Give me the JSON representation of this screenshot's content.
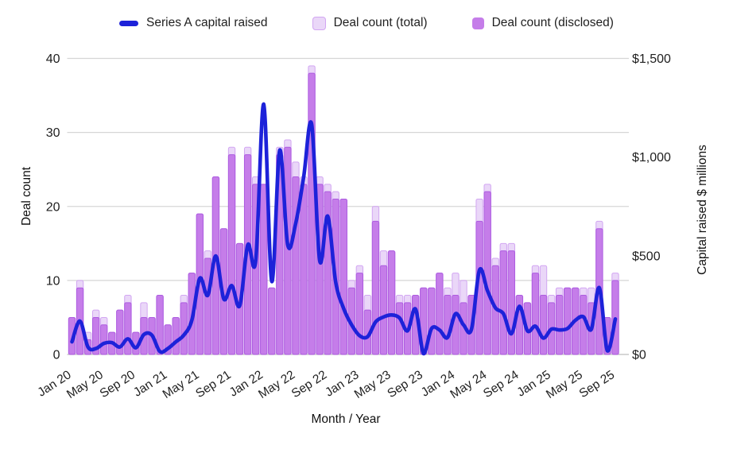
{
  "legend": {
    "series_a_label": "Series A capital raised",
    "total_label": "Deal count (total)",
    "disclosed_label": "Deal count (disclosed)"
  },
  "colors": {
    "line": "#1d22d9",
    "bar_total_fill": "#ead7f8",
    "bar_total_stroke": "#d2a6f2",
    "bar_disclosed_fill": "#c57de9",
    "bar_disclosed_stroke": "#ad5ce0",
    "grid": "#d6d6d6",
    "baseline": "#bdbdbd",
    "text": "#1f1f1f"
  },
  "axes": {
    "left": {
      "title": "Deal count",
      "ticks": [
        0,
        10,
        20,
        30,
        40
      ],
      "max": 40
    },
    "right": {
      "title": "Capital raised $ millions",
      "ticks": [
        "$0",
        "$500",
        "$1,000",
        "$1,500"
      ],
      "tick_values": [
        0,
        500,
        1000,
        1500
      ],
      "max": 1500
    },
    "x": {
      "title": "Month / Year",
      "label_every_n_months": 4
    }
  },
  "chart_data": {
    "type": "bar",
    "subtype": "combo-bar-line-dual-axis",
    "title": "",
    "xlabel": "Month / Year",
    "ylabel_left": "Deal count",
    "ylabel_right": "Capital raised $ millions",
    "left_ylim": [
      0,
      40
    ],
    "right_ylim": [
      0,
      1500
    ],
    "grid": true,
    "legend_position": "top",
    "categories": [
      "Jan 20",
      "Feb 20",
      "Mar 20",
      "Apr 20",
      "May 20",
      "Jun 20",
      "Jul 20",
      "Aug 20",
      "Sep 20",
      "Oct 20",
      "Nov 20",
      "Dec 20",
      "Jan 21",
      "Feb 21",
      "Mar 21",
      "Apr 21",
      "May 21",
      "Jun 21",
      "Jul 21",
      "Aug 21",
      "Sep 21",
      "Oct 21",
      "Nov 21",
      "Dec 21",
      "Jan 22",
      "Feb 22",
      "Mar 22",
      "Apr 22",
      "May 22",
      "Jun 22",
      "Jul 22",
      "Aug 22",
      "Sep 22",
      "Oct 22",
      "Nov 22",
      "Dec 22",
      "Jan 23",
      "Feb 23",
      "Mar 23",
      "Apr 23",
      "May 23",
      "Jun 23",
      "Jul 23",
      "Aug 23",
      "Sep 23",
      "Oct 23",
      "Nov 23",
      "Dec 23",
      "Jan 24",
      "Feb 24",
      "Mar 24",
      "Apr 24",
      "May 24",
      "Jun 24",
      "Jul 24",
      "Aug 24",
      "Sep 24",
      "Oct 24",
      "Nov 24",
      "Dec 24",
      "Jan 25",
      "Feb 25",
      "Mar 25",
      "Apr 25",
      "May 25",
      "Jun 25",
      "Jul 25",
      "Aug 25",
      "Sep 25"
    ],
    "x_tick_labels": [
      "Jan 20",
      "May 20",
      "Sep 20",
      "Jan 21",
      "May 21",
      "Sep 21",
      "Jan 22",
      "May 22",
      "Sep 22",
      "Jan 23",
      "May 23",
      "Sep 23",
      "Jan 24",
      "May 24",
      "Sep 24",
      "Jan 25",
      "May 25",
      "Sep 25"
    ],
    "series": [
      {
        "name": "Deal count (total)",
        "type": "bar",
        "axis": "left",
        "values": [
          5,
          10,
          3,
          6,
          5,
          3,
          6,
          8,
          3,
          7,
          5,
          8,
          4,
          5,
          8,
          11,
          19,
          14,
          24,
          17,
          28,
          15,
          28,
          24,
          23,
          9,
          28,
          29,
          26,
          24,
          39,
          24,
          23,
          22,
          21,
          10,
          12,
          8,
          20,
          14,
          14,
          8,
          8,
          8,
          9,
          9,
          11,
          9,
          11,
          10,
          8,
          21,
          23,
          13,
          15,
          15,
          8,
          7,
          12,
          12,
          8,
          9,
          9,
          9,
          9,
          9,
          18,
          5,
          11
        ]
      },
      {
        "name": "Deal count (disclosed)",
        "type": "bar",
        "axis": "left",
        "values": [
          5,
          9,
          2,
          5,
          4,
          3,
          6,
          7,
          3,
          5,
          5,
          8,
          4,
          5,
          7,
          11,
          19,
          13,
          24,
          17,
          27,
          15,
          27,
          23,
          23,
          9,
          27,
          28,
          24,
          23,
          38,
          23,
          22,
          21,
          21,
          9,
          11,
          6,
          18,
          12,
          14,
          7,
          7,
          8,
          9,
          9,
          11,
          8,
          8,
          7,
          8,
          18,
          22,
          12,
          14,
          14,
          8,
          7,
          11,
          8,
          7,
          8,
          9,
          9,
          8,
          7,
          17,
          5,
          10
        ]
      },
      {
        "name": "Series A capital raised",
        "type": "line",
        "axis": "right",
        "unit": "$ millions",
        "values": [
          64,
          169,
          38,
          30,
          56,
          60,
          38,
          79,
          34,
          101,
          98,
          15,
          30,
          64,
          98,
          173,
          386,
          300,
          499,
          281,
          349,
          248,
          555,
          476,
          1268,
          371,
          1035,
          555,
          664,
          900,
          1166,
          476,
          701,
          368,
          233,
          150,
          95,
          90,
          165,
          190,
          200,
          185,
          120,
          230,
          2,
          131,
          124,
          86,
          206,
          150,
          128,
          428,
          323,
          236,
          206,
          105,
          244,
          120,
          143,
          83,
          128,
          124,
          131,
          173,
          191,
          128,
          338,
          19,
          180
        ]
      }
    ]
  }
}
